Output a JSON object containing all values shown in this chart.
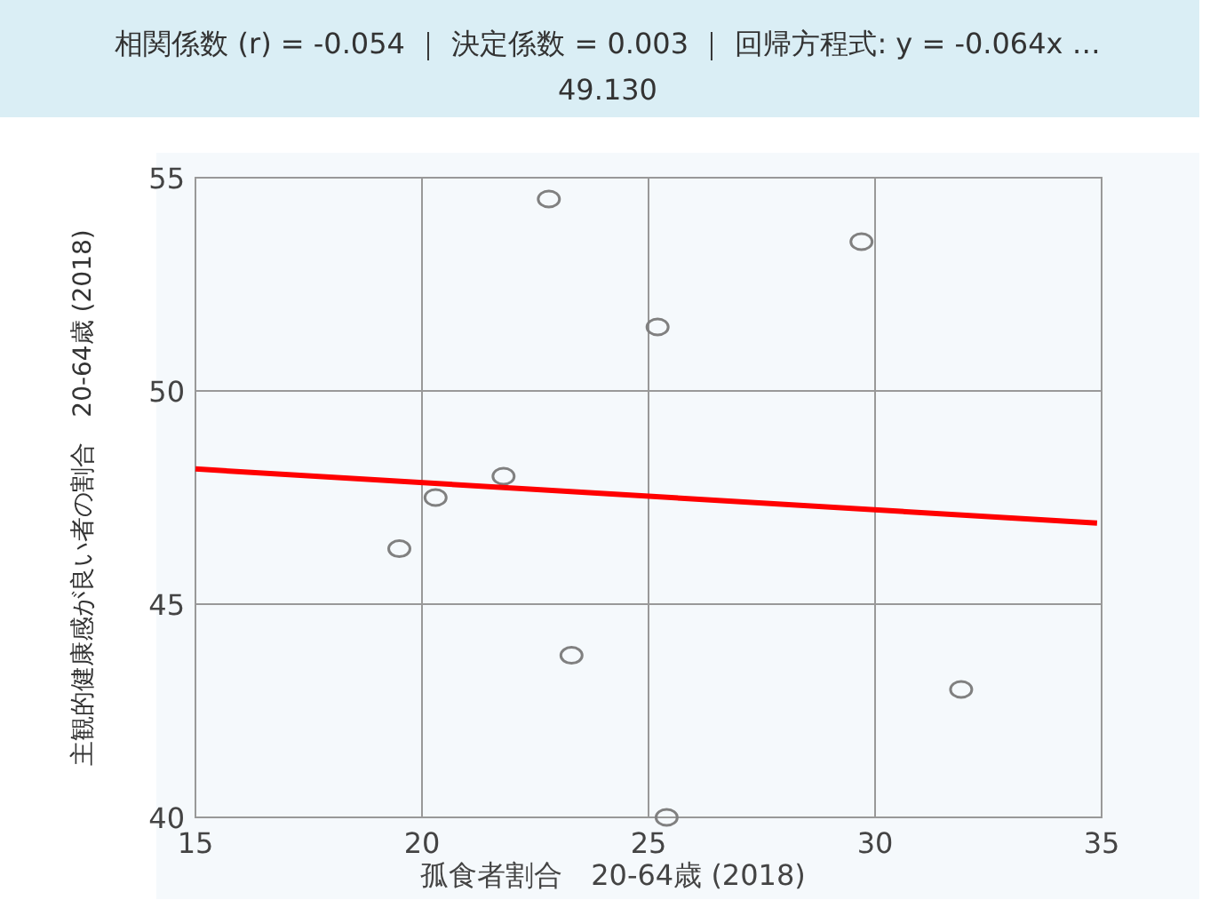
{
  "chart_data": {
    "type": "scatter",
    "title": "相関係数 (r) = -0.054 ｜ 決定係数 = 0.003 ｜ 回帰方程式: y = -0.064x …",
    "subtitle": "49.130",
    "xlabel": "孤食者割合　20-64歳 (2018)",
    "ylabel": "主観的健康感が良い者の割合　20-64歳 (2018)",
    "series": [
      {
        "color": "#808080",
        "marker": "circle",
        "x": [
          19.5,
          20.3,
          21.8,
          22.8,
          23.3,
          25.2,
          25.4,
          29.7,
          31.9
        ],
        "values": [
          46.3,
          47.5,
          48.0,
          54.5,
          43.8,
          51.5,
          40.0,
          53.5,
          43.0
        ]
      },
      {
        "type": "line",
        "color": "#ff0000",
        "line_style": "solid",
        "x": [
          15,
          34.9
        ],
        "values": [
          48.17,
          46.9
        ]
      }
    ],
    "xlim": [
      15,
      35
    ],
    "xticks": [
      15,
      20,
      25,
      30,
      35
    ],
    "ylim": [
      40,
      55
    ],
    "yticks": [
      40,
      45,
      50,
      55
    ],
    "grid": true
  }
}
